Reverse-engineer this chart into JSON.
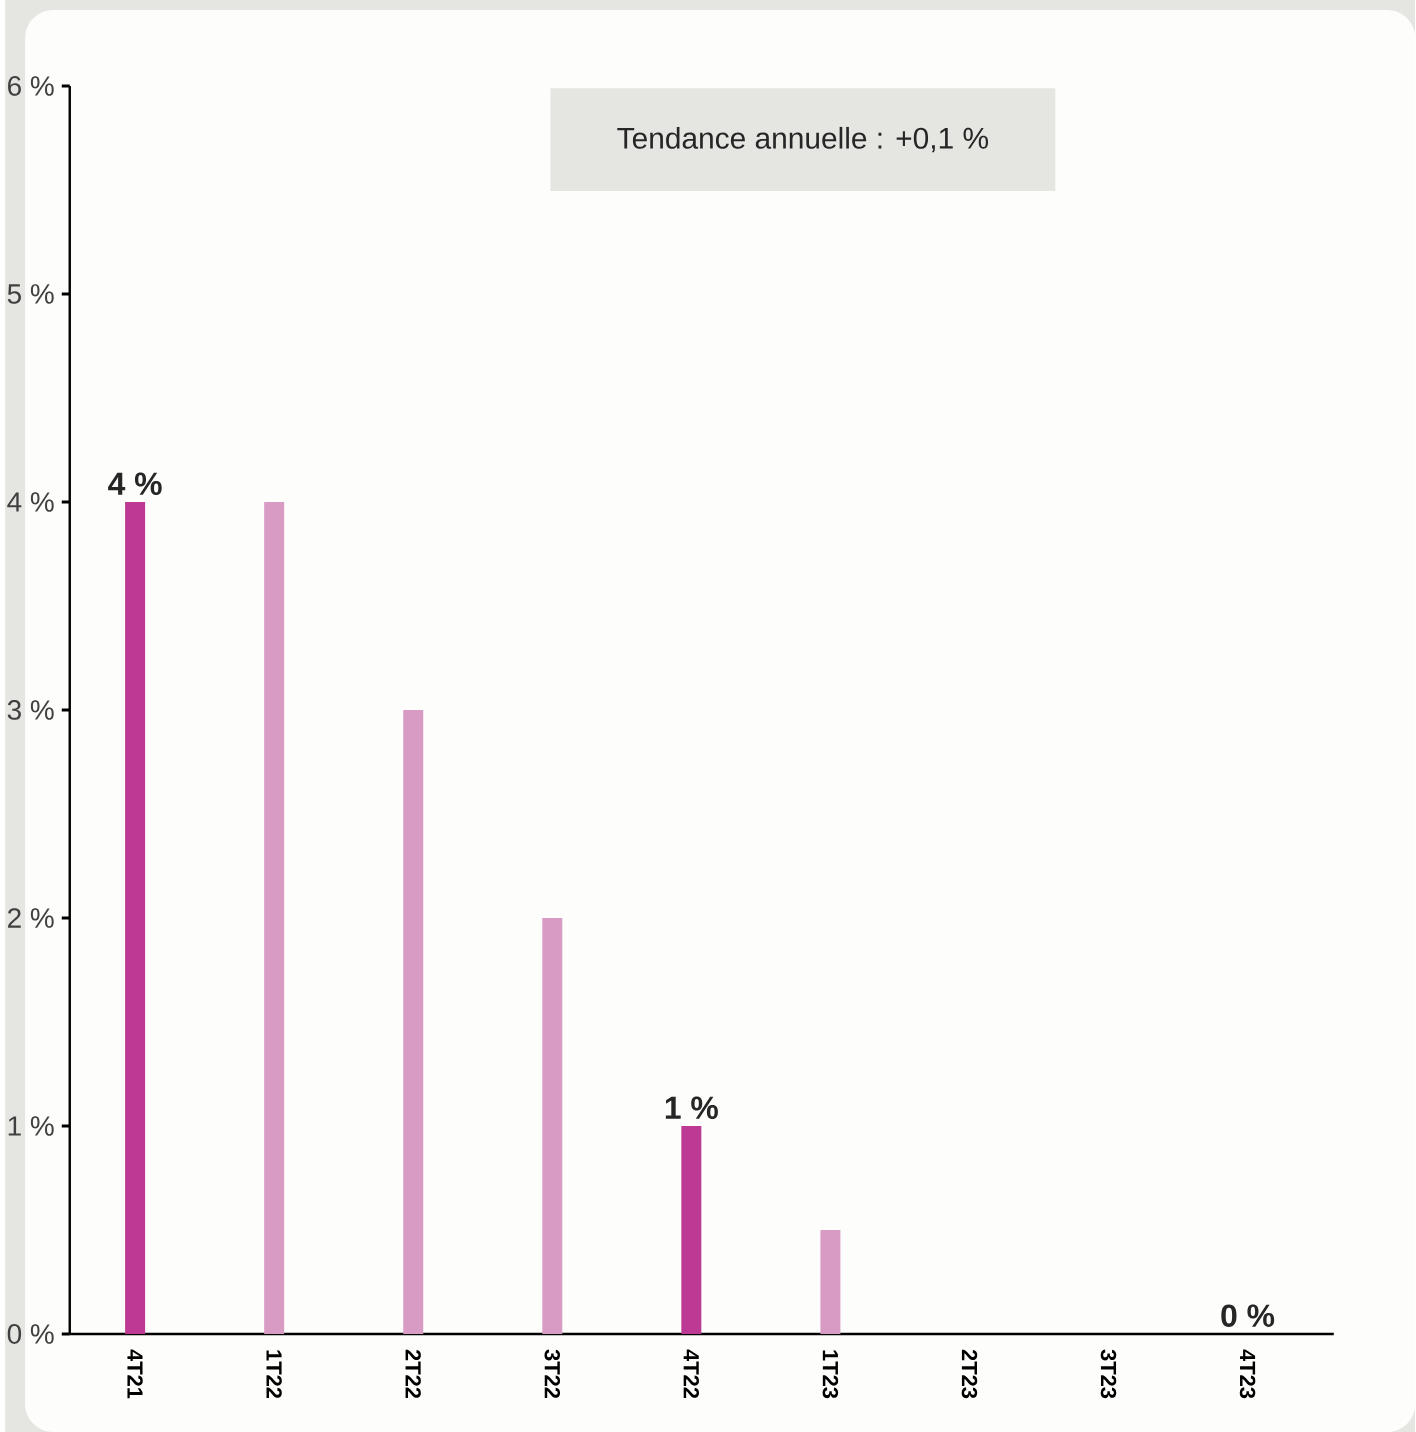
{
  "chart_data": {
    "type": "bar",
    "categories": [
      "4T21",
      "1T22",
      "2T22",
      "3T22",
      "4T22",
      "1T23",
      "2T23",
      "3T23",
      "4T23"
    ],
    "values": [
      4,
      4,
      3,
      2,
      1,
      0.5,
      null,
      null,
      0
    ],
    "colors": [
      "#bc3a94",
      "#d89bc4",
      "#d89bc4",
      "#d89bc4",
      "#bc3a94",
      "#d89bc4",
      "#d89bc4",
      "#d89bc4",
      "#bc3a94"
    ],
    "value_labels": [
      "4 %",
      null,
      null,
      null,
      "1 %",
      null,
      null,
      null,
      "0 %"
    ],
    "ylim": [
      0,
      6
    ],
    "yticks": [
      {
        "value": 0,
        "label": "0 %"
      },
      {
        "value": 1,
        "label": "1 %"
      },
      {
        "value": 2,
        "label": "2 %"
      },
      {
        "value": 3,
        "label": "3 %"
      },
      {
        "value": 4,
        "label": "4 %"
      },
      {
        "value": 5,
        "label": "5 %"
      },
      {
        "value": 6,
        "label": "6 %"
      }
    ],
    "annotations": [
      "Tendance annuelle : +0,1 %"
    ],
    "grid": false
  }
}
